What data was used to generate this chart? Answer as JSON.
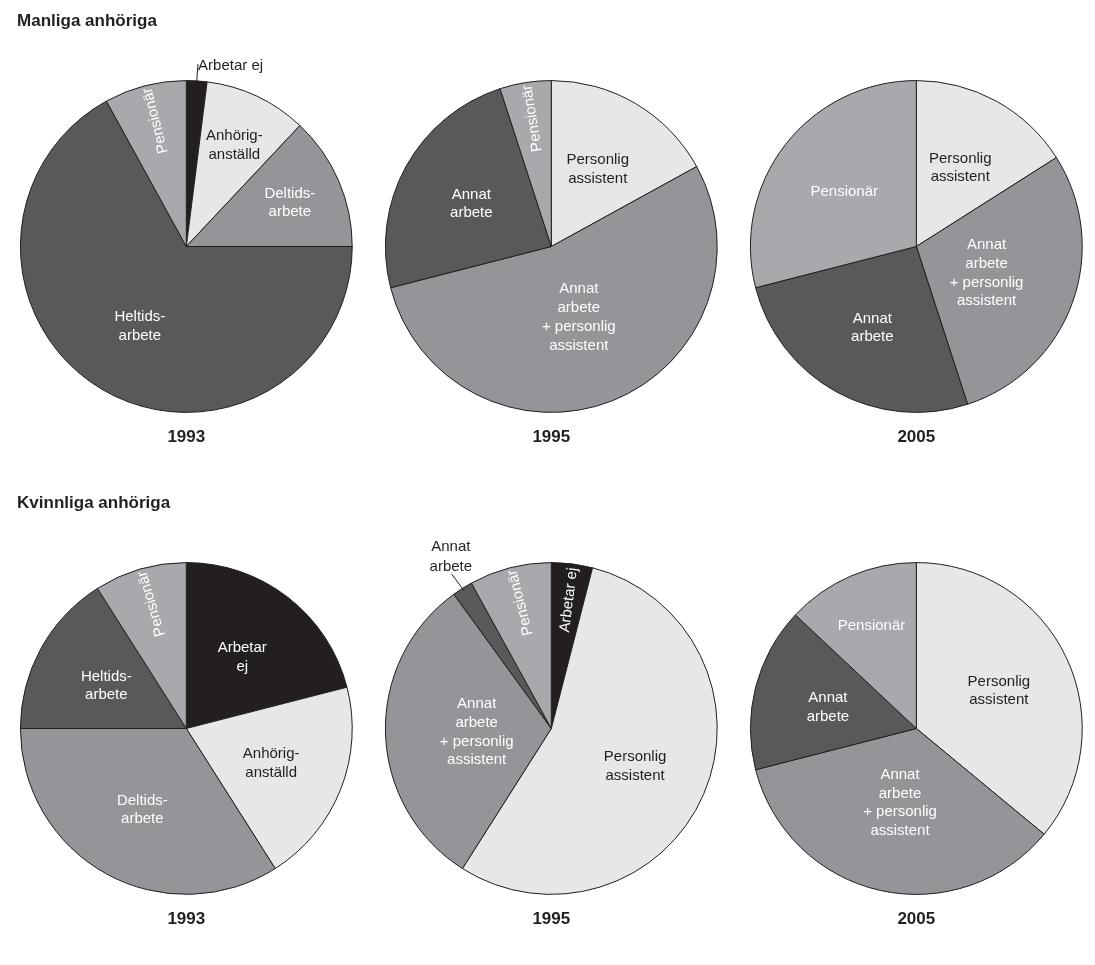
{
  "chart_data": [
    {
      "type": "pie",
      "subtitle": "Manliga anhöriga",
      "title": "1993",
      "categories": [
        "Arbetar ej",
        "Anhörig-\nanställd",
        "Deltids-\narbete",
        "Heltids-\narbete",
        "Pensionär"
      ],
      "values": [
        2,
        10,
        13,
        67,
        8
      ],
      "colors": [
        "#231f20",
        "#e6e7e8",
        "#939598",
        "#58595b",
        "#a7a9ac"
      ]
    },
    {
      "type": "pie",
      "title": "1995",
      "categories": [
        "Personlig\nassistent",
        "Annat\narbete\n+ personlig\nassistent",
        "Annat\narbete",
        "Pensionär"
      ],
      "values": [
        17,
        54,
        24,
        5
      ],
      "colors": [
        "#e6e7e8",
        "#939598",
        "#58595b",
        "#a7a9ac"
      ]
    },
    {
      "type": "pie",
      "title": "2005",
      "categories": [
        "Personlig\nassistent",
        "Annat\narbete\n+ personlig\nassistent",
        "Annat\narbete",
        "Pensionär"
      ],
      "values": [
        16,
        29,
        26,
        29
      ],
      "colors": [
        "#e6e7e8",
        "#939598",
        "#58595b",
        "#a7a9ac"
      ]
    },
    {
      "type": "pie",
      "subtitle": "Kvinnliga anhöriga",
      "title": "1993",
      "categories": [
        "Arbetar\nej",
        "Anhörig-\nanställd",
        "Deltids-\narbete",
        "Heltids-\narbete",
        "Pensionär"
      ],
      "values": [
        21,
        20,
        34,
        16,
        9
      ],
      "colors": [
        "#231f20",
        "#e6e7e8",
        "#939598",
        "#58595b",
        "#a7a9ac"
      ]
    },
    {
      "type": "pie",
      "title": "1995",
      "categories": [
        "Arbetar ej",
        "Personlig\nassistent",
        "Annat\narbete\n+ personlig\nassistent",
        "Annat\narbete",
        "Pensionär"
      ],
      "values": [
        4,
        55,
        31,
        2,
        8
      ],
      "colors": [
        "#231f20",
        "#e6e7e8",
        "#939598",
        "#58595b",
        "#a7a9ac"
      ]
    },
    {
      "type": "pie",
      "title": "2005",
      "categories": [
        "Personlig\nassistent",
        "Annat\narbete\n+ personlig\nassistent",
        "Annat\narbete",
        "Pensionär"
      ],
      "values": [
        36,
        35,
        16,
        13
      ],
      "colors": [
        "#e6e7e8",
        "#939598",
        "#58595b",
        "#a7a9ac"
      ]
    }
  ]
}
